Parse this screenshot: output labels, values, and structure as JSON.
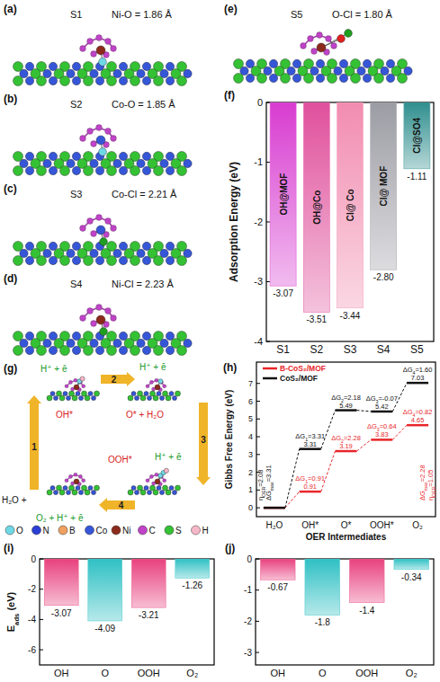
{
  "structures": [
    {
      "panel": "(a)",
      "label": "S1",
      "bond": "Ni-O = 1.86 Å"
    },
    {
      "panel": "(b)",
      "label": "S2",
      "bond": "Co-O = 1.85 Å"
    },
    {
      "panel": "(c)",
      "label": "S3",
      "bond": "Co-Cl = 2.21 Å"
    },
    {
      "panel": "(d)",
      "label": "S4",
      "bond": "Ni-Cl = 2.23 Å"
    },
    {
      "panel": "(e)",
      "label": "S5",
      "bond": "O-Cl = 1.80 Å"
    }
  ],
  "scheme": {
    "panel": "(g)",
    "steps": [
      "1",
      "2",
      "3",
      "4"
    ],
    "reactant": "H₂O +",
    "proton_electron": [
      "H⁺ + ē",
      "H⁺ + ē",
      "H⁺ + ē",
      "O₂ + H⁺ + ē"
    ],
    "intermediates": [
      "OH*",
      "O* + H₂O",
      "OOH*"
    ],
    "atoms": [
      {
        "label": "O",
        "color": "#6fd8e6"
      },
      {
        "label": "N",
        "color": "#2b3fd6"
      },
      {
        "label": "B",
        "color": "#f0a060"
      },
      {
        "label": "Co",
        "color": "#3656d8"
      },
      {
        "label": "Ni",
        "color": "#8c2a1c"
      },
      {
        "label": "C",
        "color": "#c043c8"
      },
      {
        "label": "S",
        "color": "#34c234"
      },
      {
        "label": "H",
        "color": "#f6b8c8"
      }
    ]
  },
  "chart_data": [
    {
      "type": "bar",
      "panel": "(f)",
      "ylabel": "Adsorption Energy (eV)",
      "categories": [
        "S1",
        "S2",
        "S3",
        "S4",
        "S5"
      ],
      "values": [
        -3.07,
        -3.51,
        -3.44,
        -2.8,
        -1.11
      ],
      "value_labels": [
        "-3.07",
        "-3.51",
        "-3.44",
        "-2.80",
        "-1.11"
      ],
      "bar_labels": [
        "OH@MOF",
        "OH@Co",
        "Cl@ Co",
        "Cl@ MOF",
        "Cl@SO4"
      ],
      "colors": [
        "#d83cd0",
        "#e0509c",
        "#f28cb0",
        "#9c9ca4",
        "#2f8e8e"
      ],
      "ylim": [
        -4,
        0
      ],
      "yticks": [
        -4,
        -3,
        -2,
        -1,
        0
      ],
      "data_labels": true
    },
    {
      "type": "step",
      "panel": "(h)",
      "ylabel": "Gibbs Free Energy (eV)",
      "xlabel": "OER Intermediates",
      "categories": [
        "H₂O",
        "OH*",
        "O*",
        "OOH*",
        "O₂"
      ],
      "series": [
        {
          "name": "B-CoS₂/MOF",
          "color": "#e8262a",
          "values": [
            0,
            0.91,
            3.19,
            3.83,
            4.65
          ],
          "value_labels": [
            null,
            "0.91",
            "3.19",
            "3.83",
            "4.65"
          ],
          "step_labels": [
            "ΔG1=0.91",
            "ΔG2=2.28",
            "ΔG3=0.64",
            "ΔG4=0.82"
          ],
          "summary": [
            "ΔGmax=2.28",
            "ηOER=1.05"
          ]
        },
        {
          "name": "CoS₂/MOF",
          "color": "#111111",
          "values": [
            0,
            3.31,
            5.49,
            5.42,
            7.03
          ],
          "value_labels": [
            null,
            "3.31",
            "5.49",
            "5.42",
            "7.03"
          ],
          "step_labels": [
            "ΔG1=3.31",
            "ΔG2=2.18",
            "ΔG3=-0.07",
            "ΔG4=1.60"
          ],
          "summary": [
            "ηOER=2.08",
            "ΔGmax=3.31"
          ]
        }
      ],
      "ylim": [
        -0.5,
        8.2
      ],
      "yticks": [
        0,
        1,
        2,
        3,
        4,
        5,
        6,
        7
      ],
      "legend": "upper left",
      "data_labels": true
    },
    {
      "type": "bar",
      "panel": "(i)",
      "ylabel": "Eads (eV)",
      "categories": [
        "OH",
        "O",
        "OOH",
        "O₂"
      ],
      "values": [
        -3.07,
        -4.09,
        -3.21,
        -1.26
      ],
      "colors": [
        "#e8417e",
        "#2fc0c4",
        "#e8417e",
        "#2fc0c4"
      ],
      "ylim": [
        -7,
        0
      ],
      "yticks": [
        -6,
        -4,
        -2,
        0
      ],
      "data_labels": true
    },
    {
      "type": "bar",
      "panel": "(j)",
      "categories": [
        "OH",
        "O",
        "OOH",
        "O₂"
      ],
      "values": [
        -0.67,
        -1.8,
        -1.4,
        -0.34
      ],
      "colors": [
        "#e8417e",
        "#2fc0c4",
        "#e8417e",
        "#2fc0c4"
      ],
      "ylim": [
        -3.4,
        0
      ],
      "yticks": [
        -3,
        -2,
        -1,
        0
      ],
      "data_labels": true
    }
  ]
}
